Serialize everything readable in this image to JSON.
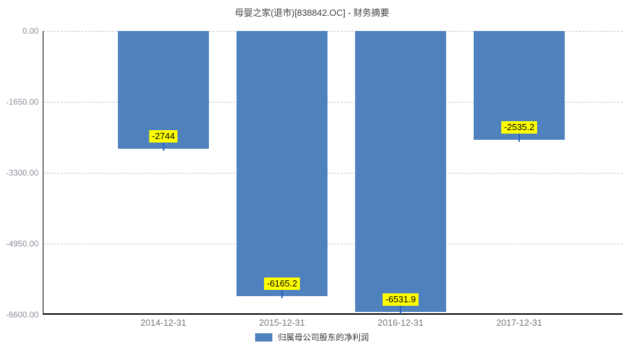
{
  "title": "母婴之家(退市)[838842.OC] - 财务摘要",
  "legend": {
    "label": "归属母公司股东的净利润"
  },
  "colors": {
    "bar": "#4E81BD",
    "pointer": "#2a5fc4",
    "value_label_bg": "#ffff00",
    "value_label_text": "#000000",
    "grid": "#c8c8c8",
    "axis_line": "#000000",
    "y_tick_text": "#8a8f99",
    "x_tick_text": "#757575"
  },
  "chart_data": {
    "type": "bar",
    "title": "母婴之家(退市)[838842.OC] - 财务摘要",
    "categories": [
      "2014-12-31",
      "2015-12-31",
      "2016-12-31",
      "2017-12-31"
    ],
    "series": [
      {
        "name": "归属母公司股东的净利润",
        "values": [
          -2744,
          -6165.2,
          -6531.9,
          -2535.2
        ]
      }
    ],
    "value_labels": [
      "-2744",
      "-6165.2",
      "-6531.9",
      "-2535.2"
    ],
    "y_ticks": [
      "0.00",
      "-1650.00",
      "-3300.00",
      "-4950.00",
      "-6600.00"
    ],
    "ylim": [
      -6600,
      0
    ],
    "xlabel": "",
    "ylabel": "",
    "grid": "horizontal-dashed",
    "legend_position": "bottom"
  }
}
